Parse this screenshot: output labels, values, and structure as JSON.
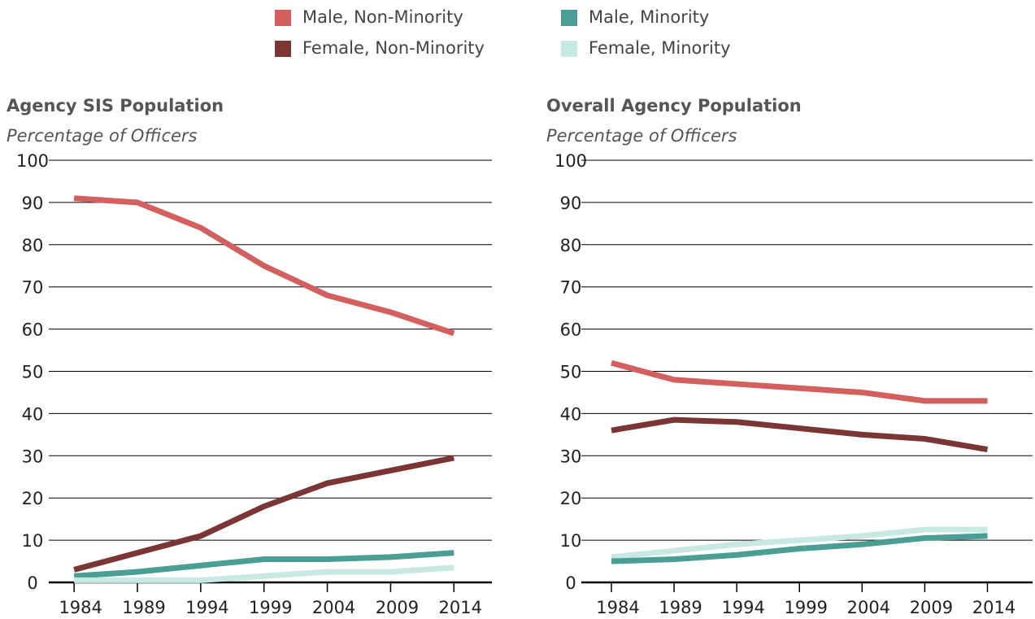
{
  "chart_data": [
    {
      "type": "line",
      "title": "Agency SIS Population",
      "subtitle": "Percentage of Officers",
      "x": [
        1984,
        1989,
        1994,
        1999,
        2004,
        2009,
        2014
      ],
      "series": [
        {
          "name": "Male, Non-Minority",
          "color": "#d35f5f",
          "values": [
            91,
            90,
            84,
            75,
            68,
            64,
            59
          ]
        },
        {
          "name": "Female, Non-Minority",
          "color": "#7b3535",
          "values": [
            3,
            7,
            11,
            18,
            23.5,
            26.5,
            29.5
          ]
        },
        {
          "name": "Male, Minority",
          "color": "#4a9e94",
          "values": [
            1.5,
            2.5,
            4,
            5.5,
            5.5,
            6,
            7
          ]
        },
        {
          "name": "Female, Minority",
          "color": "#c8e8e4",
          "values": [
            0.5,
            0.5,
            0.5,
            1.5,
            2.5,
            2.5,
            3.5
          ]
        }
      ],
      "xlim": [
        1982,
        2017
      ],
      "xticks": [
        1984,
        1989,
        1994,
        1999,
        2004,
        2009,
        2014
      ],
      "ylim": [
        0,
        100
      ],
      "yticks": [
        0,
        10,
        20,
        30,
        40,
        50,
        60,
        70,
        80,
        90,
        100
      ],
      "grid": true
    },
    {
      "type": "line",
      "title": "Overall Agency Population",
      "subtitle": "Percentage of Officers",
      "x": [
        1984,
        1989,
        1994,
        1999,
        2004,
        2009,
        2014
      ],
      "series": [
        {
          "name": "Male, Non-Minority",
          "color": "#d35f5f",
          "values": [
            52,
            48,
            47,
            46,
            45,
            43,
            43
          ]
        },
        {
          "name": "Female, Non-Minority",
          "color": "#7b3535",
          "values": [
            36,
            38.5,
            38,
            36.5,
            35,
            34,
            31.5
          ]
        },
        {
          "name": "Female, Minority",
          "color": "#c8e8e4",
          "values": [
            6,
            7.5,
            9,
            10,
            11,
            12.5,
            12.5
          ]
        },
        {
          "name": "Male, Minority",
          "color": "#4a9e94",
          "values": [
            5,
            5.5,
            6.5,
            8,
            9,
            10.5,
            11
          ]
        }
      ],
      "xlim": [
        1981.6,
        2017.6
      ],
      "xticks": [
        1984,
        1989,
        1994,
        1999,
        2004,
        2009,
        2014
      ],
      "ylim": [
        0,
        100
      ],
      "yticks": [
        0,
        10,
        20,
        30,
        40,
        50,
        60,
        70,
        80,
        90,
        100
      ],
      "grid": true
    }
  ]
}
